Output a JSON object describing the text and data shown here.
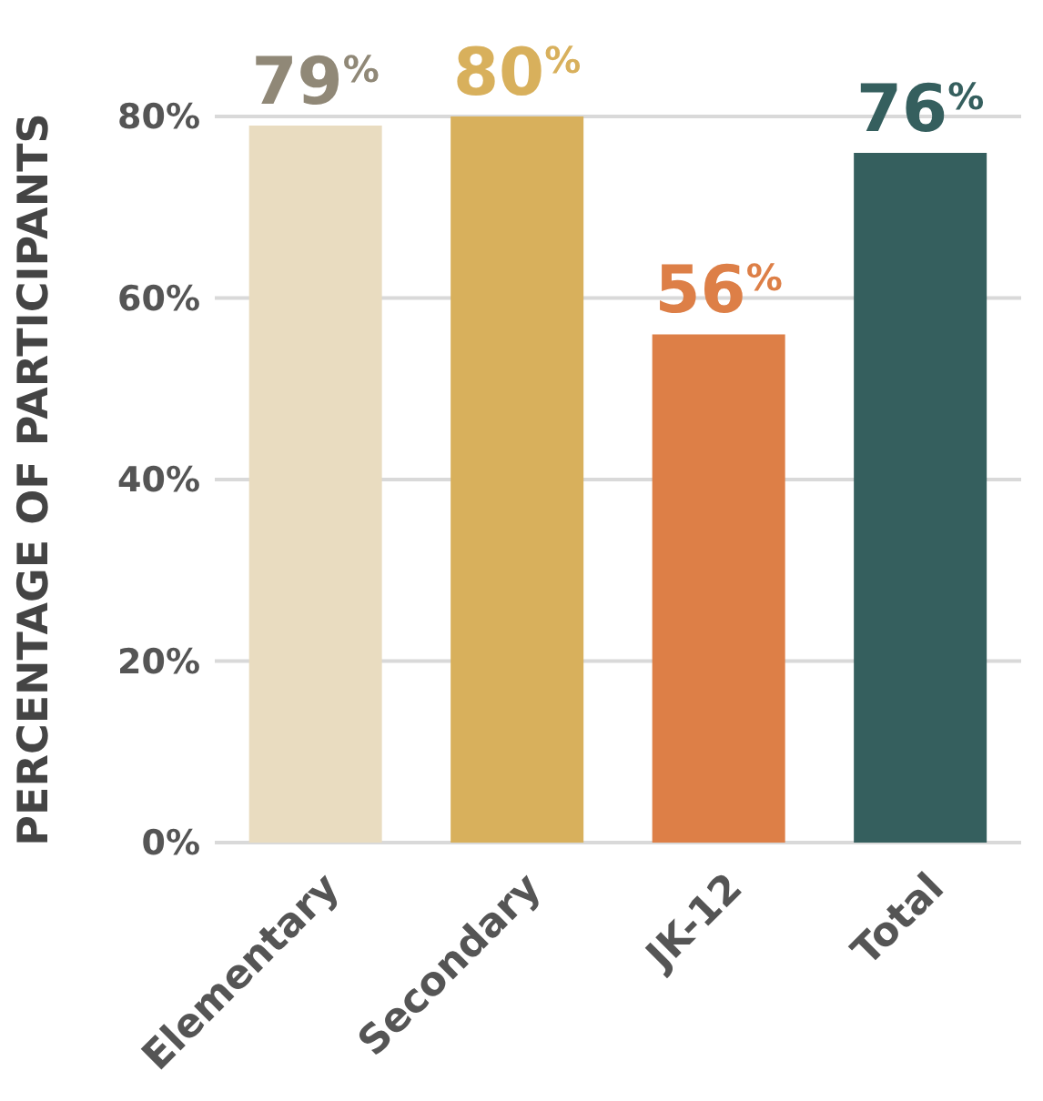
{
  "chart_data": {
    "type": "bar",
    "ylabel": "PERCENTAGE OF PARTICIPANTS",
    "categories": [
      "Elementary",
      "Secondary",
      "JK-12",
      "Total"
    ],
    "values": [
      79,
      80,
      56,
      76
    ],
    "colors": [
      "#e9dcc0",
      "#d8b05c",
      "#dd7f47",
      "#355f5e"
    ],
    "value_labels": [
      "79$^{%}$",
      "80$^{%}$",
      "56$^{%}$",
      "76$^{%}$"
    ],
    "ylim": [
      0,
      80
    ],
    "yticks": [
      {
        "value": 0,
        "label": "0%"
      },
      {
        "value": 20,
        "label": "20%"
      },
      {
        "value": 40,
        "label": "40%"
      },
      {
        "value": 60,
        "label": "60%"
      },
      {
        "value": 80,
        "label": "80%"
      }
    ],
    "grid": "y",
    "legend": false
  }
}
